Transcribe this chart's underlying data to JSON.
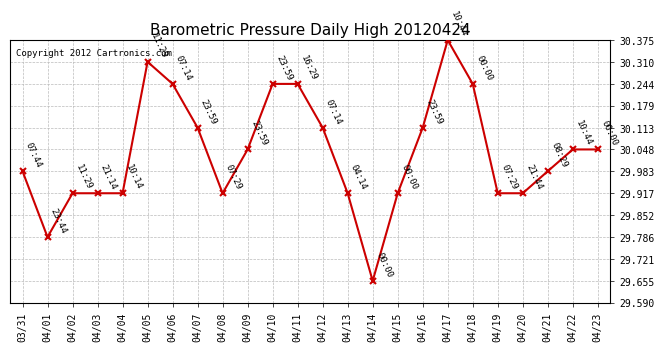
{
  "title": "Barometric Pressure Daily High 20120424",
  "copyright": "Copyright 2012 Cartronics.com",
  "x_labels": [
    "03/31",
    "04/01",
    "04/02",
    "04/03",
    "04/04",
    "04/05",
    "04/06",
    "04/07",
    "04/08",
    "04/09",
    "04/10",
    "04/11",
    "04/12",
    "04/13",
    "04/14",
    "04/15",
    "04/16",
    "04/17",
    "04/18",
    "04/19",
    "04/20",
    "04/21",
    "04/22",
    "04/23"
  ],
  "y_values": [
    29.983,
    29.786,
    29.917,
    29.917,
    29.917,
    30.31,
    30.244,
    30.113,
    29.917,
    30.048,
    30.244,
    30.244,
    30.113,
    29.917,
    29.655,
    29.917,
    30.113,
    30.375,
    30.244,
    29.917,
    29.917,
    29.983,
    30.048,
    30.048
  ],
  "point_labels": [
    "07:44",
    "23:44",
    "11:29",
    "21:14",
    "10:14",
    "11:29",
    "07:14",
    "23:59",
    "07:29",
    "23:59",
    "23:59",
    "16:29",
    "07:14",
    "04:14",
    "00:00",
    "00:00",
    "23:59",
    "10:44",
    "00:00",
    "07:29",
    "21:44",
    "08:29",
    "10:44",
    "00:00"
  ],
  "ylim": [
    29.59,
    30.375
  ],
  "yticks": [
    29.59,
    29.655,
    29.721,
    29.786,
    29.852,
    29.917,
    29.983,
    30.048,
    30.113,
    30.179,
    30.244,
    30.31,
    30.375
  ],
  "line_color": "#cc0000",
  "marker_color": "#cc0000",
  "bg_color": "#ffffff",
  "grid_color": "#bbbbbb",
  "title_fontsize": 11,
  "label_fontsize": 6.5,
  "tick_fontsize": 7,
  "copyright_fontsize": 6.5
}
